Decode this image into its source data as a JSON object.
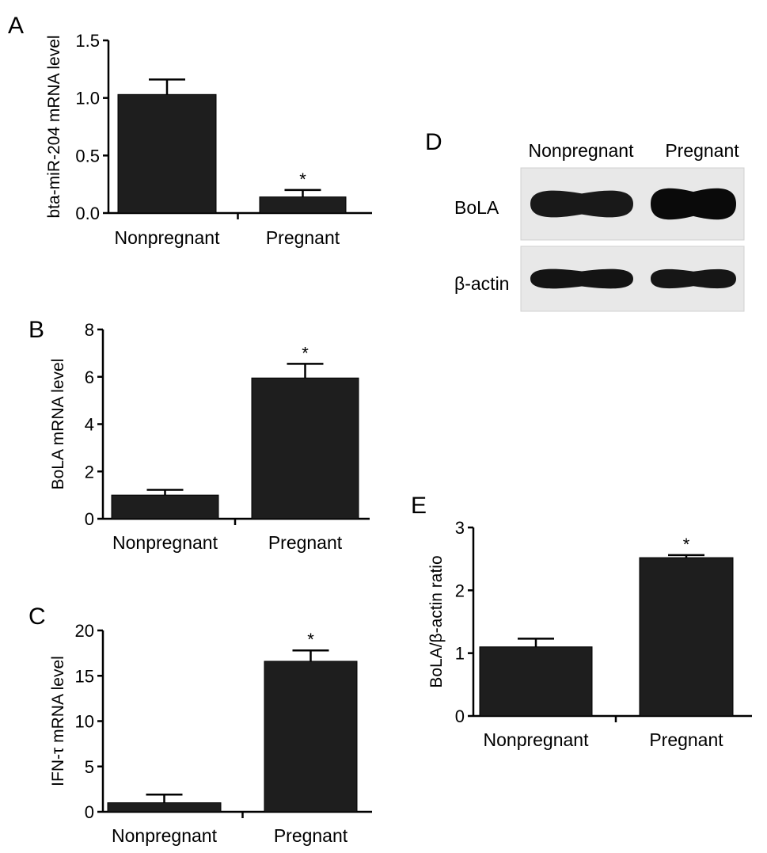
{
  "figure": {
    "colors": {
      "bar": "#1e1e1e",
      "axis": "#000000",
      "blot_bg": "#e8e8e8",
      "band": "#0a0a0a"
    },
    "panels": [
      {
        "id": "A",
        "letter": "A"
      },
      {
        "id": "B",
        "letter": "B"
      },
      {
        "id": "C",
        "letter": "C"
      },
      {
        "id": "D",
        "letter": "D"
      },
      {
        "id": "E",
        "letter": "E"
      }
    ]
  },
  "chart_data": [
    {
      "panel": "A",
      "type": "bar",
      "categories": [
        "Nonpregnant",
        "Pregnant"
      ],
      "values": [
        1.03,
        0.14
      ],
      "errors": [
        0.13,
        0.06
      ],
      "significance": [
        "",
        "*"
      ],
      "ylabel": "bta-miR-204 mRNA level",
      "yticks": [
        "0.0",
        "0.5",
        "1.0",
        "1.5"
      ],
      "ylim": [
        0,
        1.5
      ],
      "grid": false
    },
    {
      "panel": "B",
      "type": "bar",
      "categories": [
        "Nonpregnant",
        "Pregnant"
      ],
      "values": [
        1.0,
        5.95
      ],
      "errors": [
        0.22,
        0.6
      ],
      "significance": [
        "",
        "*"
      ],
      "ylabel": "BoLA mRNA level",
      "yticks": [
        "0",
        "2",
        "4",
        "6",
        "8"
      ],
      "ylim": [
        0,
        8
      ],
      "grid": false
    },
    {
      "panel": "C",
      "type": "bar",
      "categories": [
        "Nonpregnant",
        "Pregnant"
      ],
      "values": [
        1.0,
        16.6
      ],
      "errors": [
        0.9,
        1.2
      ],
      "significance": [
        "",
        "*"
      ],
      "ylabel": "IFN-τ mRNA level",
      "yticks": [
        "0",
        "5",
        "10",
        "15",
        "20"
      ],
      "ylim": [
        0,
        20
      ],
      "grid": false
    },
    {
      "panel": "E",
      "type": "bar",
      "categories": [
        "Nonpregnant",
        "Pregnant"
      ],
      "values": [
        1.1,
        2.52
      ],
      "errors": [
        0.13,
        0.04
      ],
      "significance": [
        "",
        "*"
      ],
      "ylabel": "BoLA/β-actin ratio",
      "yticks": [
        "0",
        "1",
        "2",
        "3"
      ],
      "ylim": [
        0,
        3
      ],
      "grid": false
    }
  ],
  "western_blot": {
    "panel": "D",
    "lanes": [
      "Nonpregnant",
      "Pregnant"
    ],
    "rows": [
      {
        "label": "BoLA",
        "band_intensity": [
          0.85,
          1.0
        ]
      },
      {
        "label": "β-actin",
        "band_intensity": [
          0.9,
          0.88
        ]
      }
    ]
  }
}
